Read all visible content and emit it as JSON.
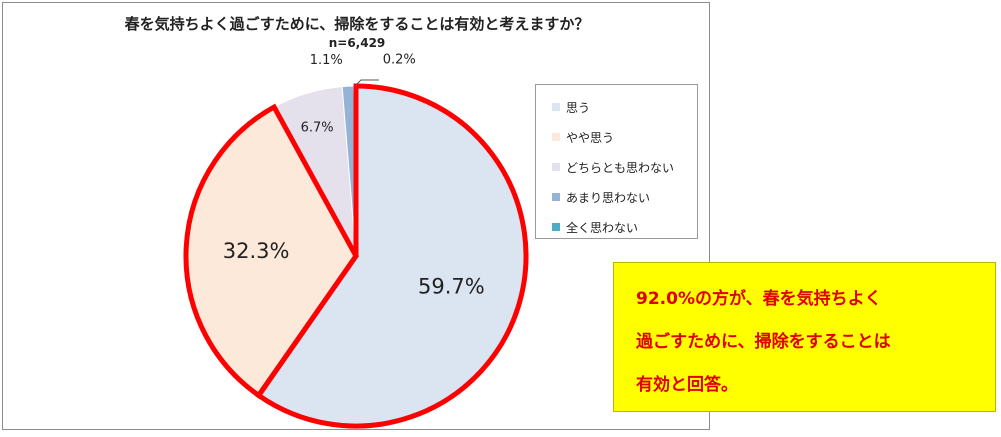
{
  "chart_data": {
    "type": "pie",
    "title": "春を気持ちよく過ごすために、掃除をすることは有効と考えますか？",
    "subtitle": "n=6,429",
    "categories": [
      "思う",
      "やや思う",
      "どちらとも思わない",
      "あまり思わない",
      "全く思わない"
    ],
    "values": [
      59.7,
      32.3,
      6.7,
      1.1,
      0.2
    ],
    "value_labels": [
      "59.7%",
      "32.3%",
      "6.7%",
      "1.1%",
      "0.2%"
    ],
    "colors": [
      "#dbe4f1",
      "#fde9d9",
      "#e4e0ec",
      "#95b3d7",
      "#4bacc6"
    ],
    "highlight": {
      "categories": [
        "思う",
        "やや思う"
      ],
      "color": "#ff0000"
    },
    "legend_position": "right"
  },
  "callout": {
    "lines": [
      "92.0%の方が、春を気持ちよく",
      "過ごすために、掃除をすることは",
      "有効と回答。"
    ]
  }
}
